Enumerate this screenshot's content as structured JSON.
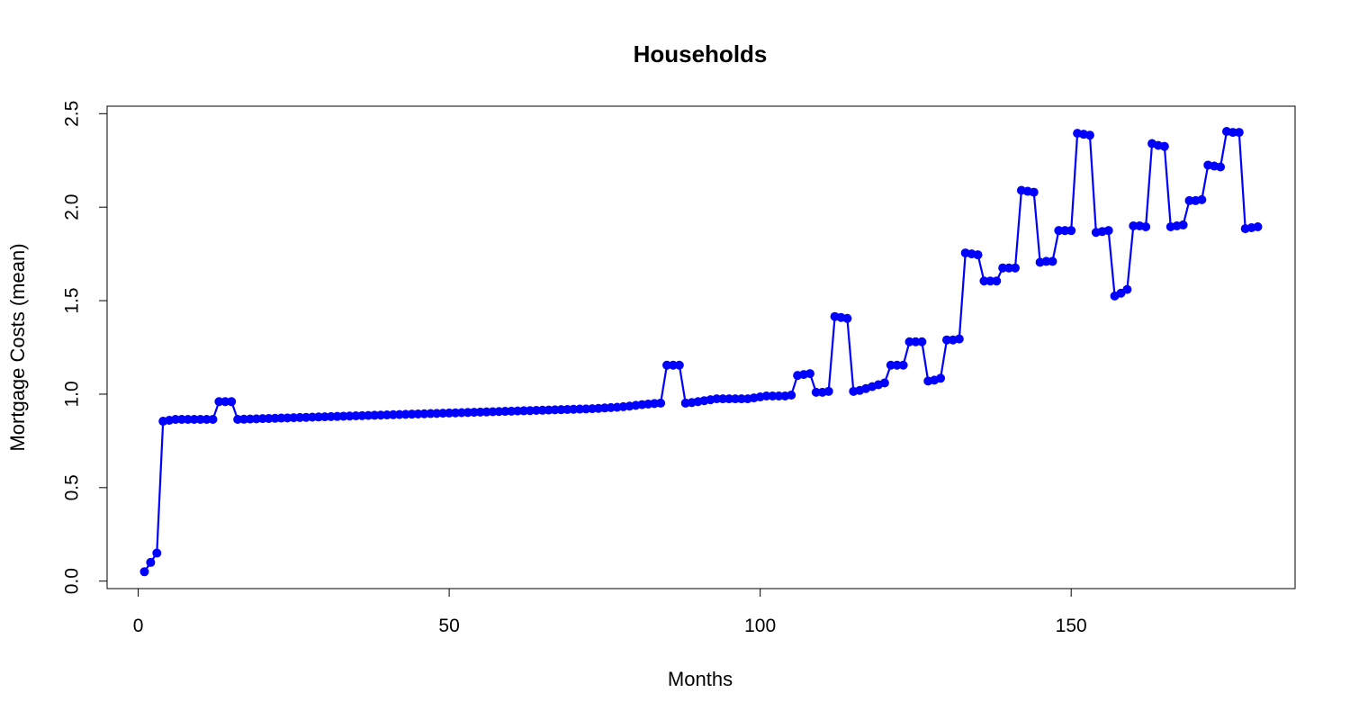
{
  "chart_data": {
    "type": "line",
    "title": "Households",
    "xlabel": "Months",
    "ylabel": "Mortgage Costs (mean)",
    "xlim": [
      -5,
      186
    ],
    "ylim": [
      -0.04,
      2.54
    ],
    "xticks": [
      0,
      50,
      100,
      150
    ],
    "yticks": [
      0.0,
      0.5,
      1.0,
      1.5,
      2.0,
      2.5
    ],
    "xtick_labels": [
      "0",
      "50",
      "100",
      "150"
    ],
    "ytick_labels": [
      "0.0",
      "0.5",
      "1.0",
      "1.5",
      "2.0",
      "2.5"
    ],
    "grid": false,
    "legend": "none",
    "color": "#0000ff",
    "series": [
      {
        "x": [
          1,
          2,
          3,
          4,
          5,
          6,
          7,
          8,
          9,
          10,
          11,
          12,
          13,
          14,
          15,
          16,
          17,
          18,
          19,
          20,
          21,
          22,
          23,
          24,
          25,
          26,
          27,
          28,
          29,
          30,
          31,
          32,
          33,
          34,
          35,
          36,
          37,
          38,
          39,
          40,
          41,
          42,
          43,
          44,
          45,
          46,
          47,
          48,
          49,
          50,
          51,
          52,
          53,
          54,
          55,
          56,
          57,
          58,
          59,
          60,
          61,
          62,
          63,
          64,
          65,
          66,
          67,
          68,
          69,
          70,
          71,
          72,
          73,
          74,
          75,
          76,
          77,
          78,
          79,
          80,
          81,
          82,
          83,
          84,
          85,
          86,
          87,
          88,
          89,
          90,
          91,
          92,
          93,
          94,
          95,
          96,
          97,
          98,
          99,
          100,
          101,
          102,
          103,
          104,
          105,
          106,
          107,
          108,
          109,
          110,
          111,
          112,
          113,
          114,
          115,
          116,
          117,
          118,
          119,
          120,
          121,
          122,
          123,
          124,
          125,
          126,
          127,
          128,
          129,
          130,
          131,
          132,
          133,
          134,
          135,
          136,
          137,
          138,
          139,
          140,
          141,
          142,
          143,
          144,
          145,
          146,
          147,
          148,
          149,
          150,
          151,
          152,
          153,
          154,
          155,
          156,
          157,
          158,
          159,
          160,
          161,
          162,
          163,
          164,
          165,
          166,
          167,
          168,
          169,
          170,
          171,
          172,
          173,
          174,
          175,
          176,
          177,
          178,
          179,
          180
        ],
        "values": [
          0.05,
          0.1,
          0.15,
          0.855,
          0.86,
          0.865,
          0.865,
          0.865,
          0.865,
          0.865,
          0.865,
          0.865,
          0.96,
          0.96,
          0.96,
          0.865,
          0.866,
          0.867,
          0.868,
          0.869,
          0.87,
          0.871,
          0.872,
          0.873,
          0.874,
          0.875,
          0.876,
          0.877,
          0.878,
          0.879,
          0.88,
          0.881,
          0.882,
          0.883,
          0.884,
          0.885,
          0.886,
          0.887,
          0.888,
          0.889,
          0.89,
          0.891,
          0.892,
          0.893,
          0.894,
          0.895,
          0.896,
          0.897,
          0.898,
          0.899,
          0.9,
          0.901,
          0.902,
          0.903,
          0.904,
          0.905,
          0.906,
          0.907,
          0.908,
          0.909,
          0.91,
          0.911,
          0.912,
          0.913,
          0.914,
          0.915,
          0.916,
          0.917,
          0.918,
          0.919,
          0.92,
          0.921,
          0.922,
          0.924,
          0.926,
          0.928,
          0.93,
          0.933,
          0.936,
          0.94,
          0.944,
          0.947,
          0.95,
          0.952,
          1.155,
          1.155,
          1.155,
          0.952,
          0.955,
          0.96,
          0.965,
          0.97,
          0.975,
          0.975,
          0.975,
          0.975,
          0.975,
          0.975,
          0.98,
          0.985,
          0.99,
          0.99,
          0.99,
          0.99,
          0.995,
          1.1,
          1.105,
          1.11,
          1.01,
          1.01,
          1.015,
          1.415,
          1.41,
          1.405,
          1.015,
          1.02,
          1.03,
          1.04,
          1.05,
          1.06,
          1.155,
          1.155,
          1.155,
          1.28,
          1.28,
          1.28,
          1.07,
          1.075,
          1.085,
          1.29,
          1.29,
          1.295,
          1.755,
          1.75,
          1.745,
          1.605,
          1.605,
          1.605,
          1.675,
          1.675,
          1.675,
          2.09,
          2.085,
          2.08,
          1.705,
          1.71,
          1.71,
          1.875,
          1.875,
          1.875,
          2.395,
          2.39,
          2.385,
          1.865,
          1.87,
          1.875,
          1.525,
          1.54,
          1.56,
          1.9,
          1.9,
          1.895,
          2.34,
          2.33,
          2.325,
          1.895,
          1.9,
          1.905,
          2.035,
          2.035,
          2.04,
          2.225,
          2.22,
          2.215,
          2.405,
          2.4,
          2.4,
          1.885,
          1.89,
          1.895
        ]
      }
    ]
  }
}
